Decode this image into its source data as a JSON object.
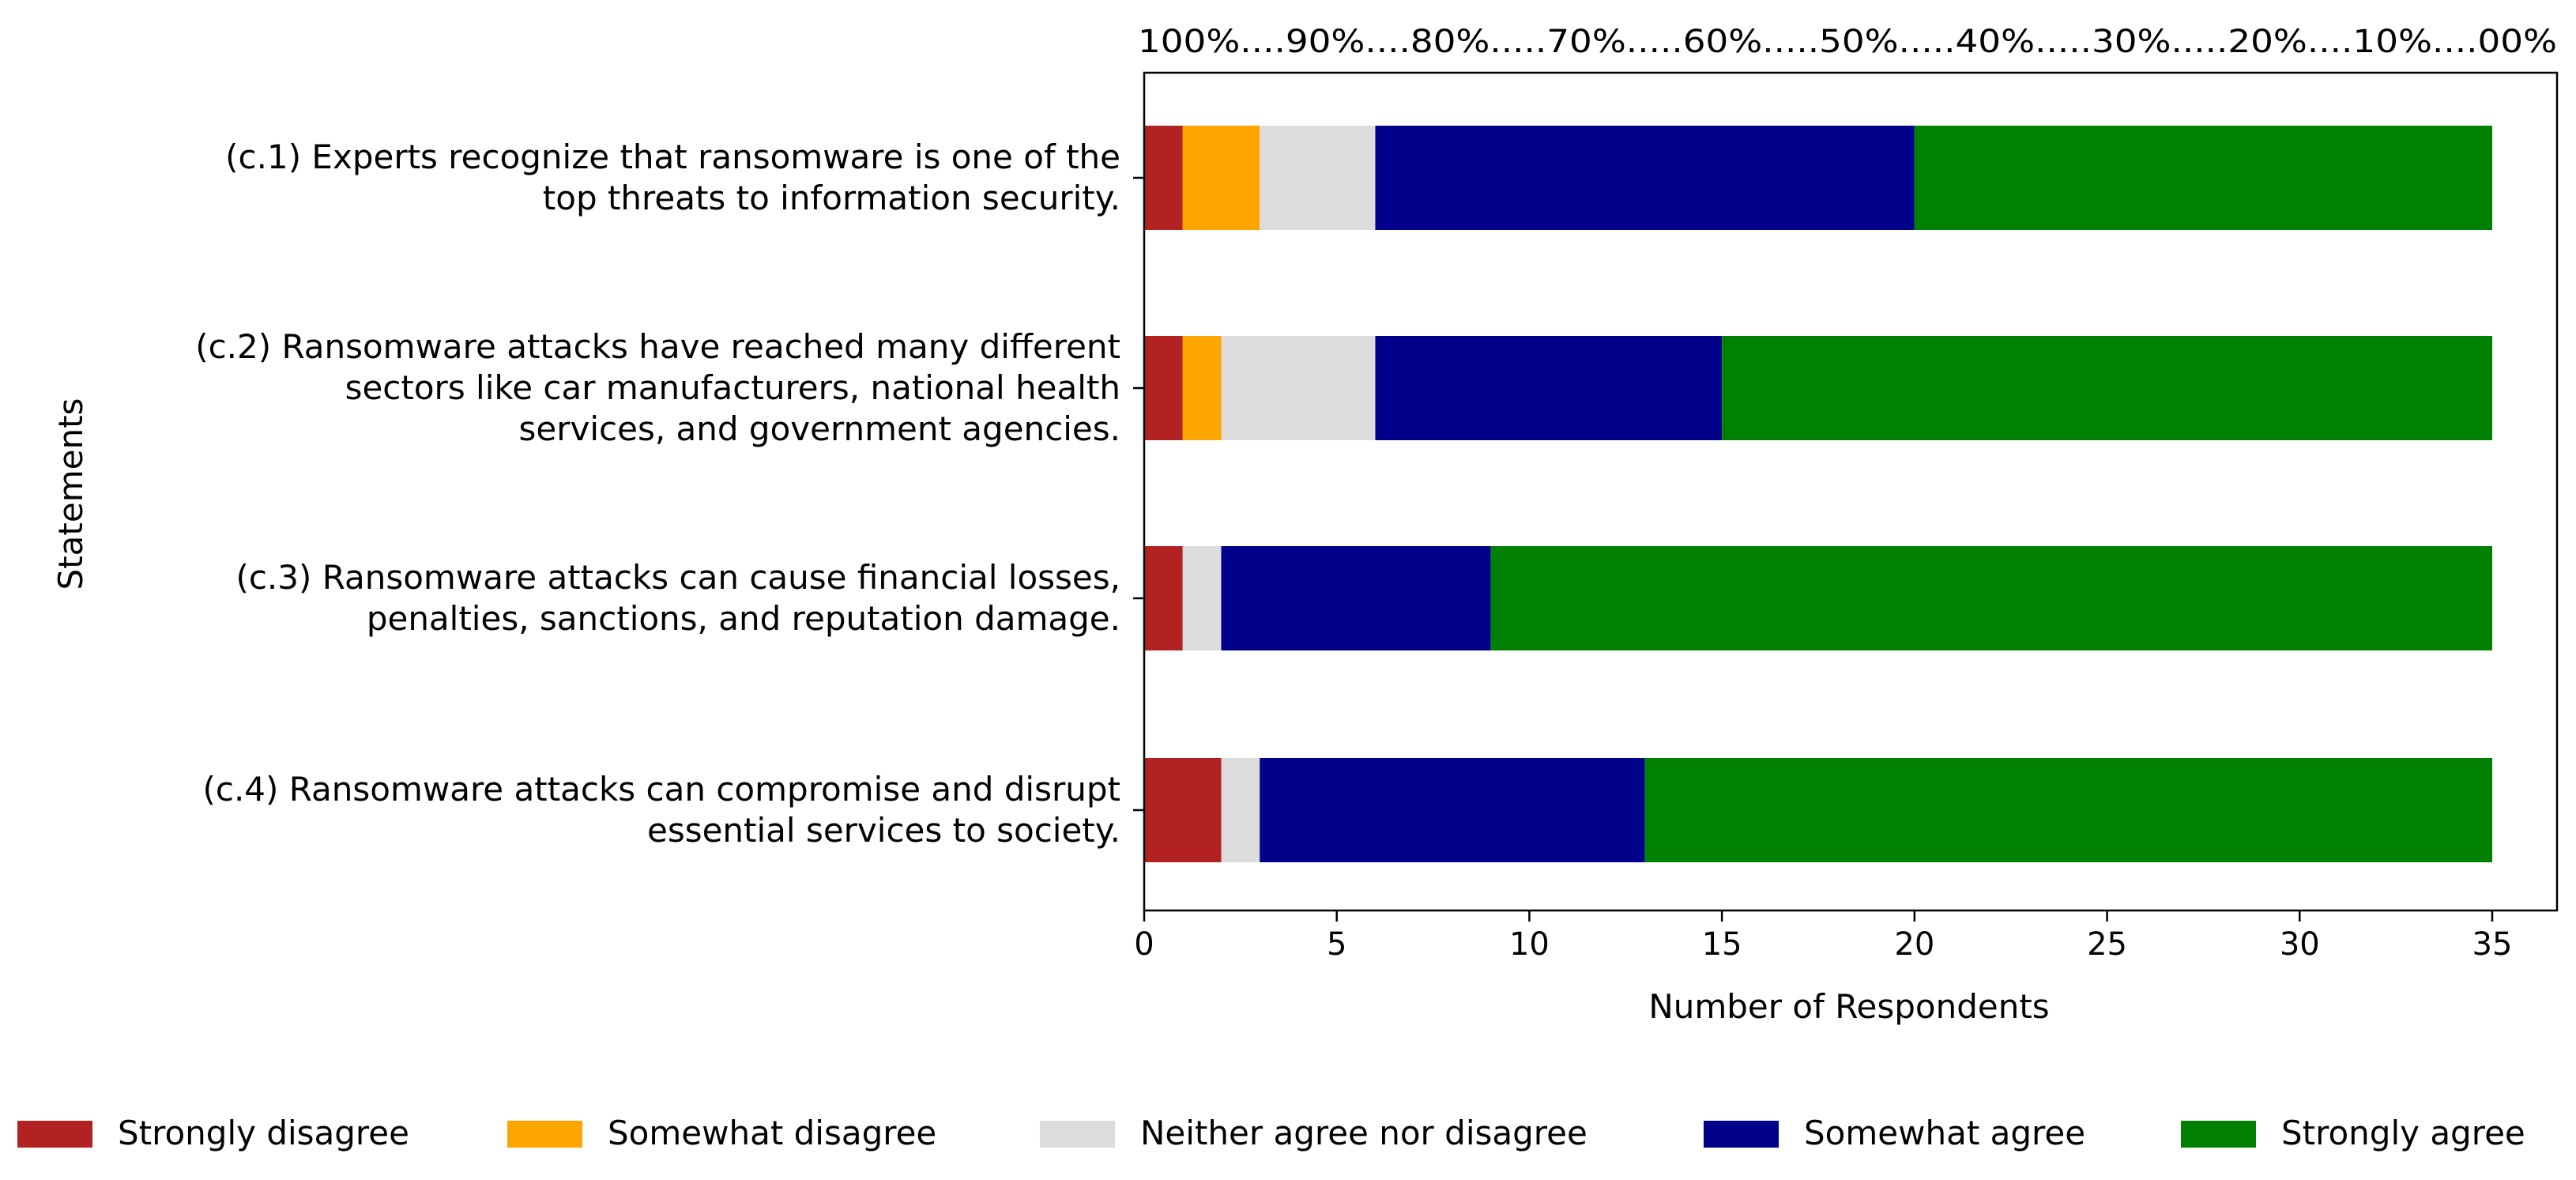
{
  "chart_data": {
    "type": "bar",
    "orientation": "horizontal",
    "stacked": true,
    "categories": [
      "(c.1) Experts recognize that ransomware is one of the\ntop threats to information security.",
      "(c.2) Ransomware attacks have reached many different\nsectors like car manufacturers, national health\nservices, and government agencies.",
      "(c.3) Ransomware attacks can cause financial losses,\npenalties, sanctions, and reputation damage.",
      "(c.4) Ransomware attacks can compromise and disrupt\nessential services to society."
    ],
    "series": [
      {
        "name": "Strongly disagree",
        "color": "#b22222",
        "values": [
          1,
          1,
          1,
          2
        ]
      },
      {
        "name": "Somewhat disagree",
        "color": "#ffa500",
        "values": [
          2,
          1,
          0,
          0
        ]
      },
      {
        "name": "Neither agree nor disagree",
        "color": "#dcdcdc",
        "values": [
          3,
          4,
          1,
          1
        ]
      },
      {
        "name": "Somewhat agree",
        "color": "#00008b",
        "values": [
          14,
          9,
          7,
          10
        ]
      },
      {
        "name": "Strongly agree",
        "color": "#008000",
        "values": [
          15,
          20,
          26,
          22
        ]
      }
    ],
    "xlabel": "Number of Respondents",
    "ylabel": "Statements",
    "xlim": [
      0,
      36.5
    ],
    "xticks": [
      0,
      5,
      10,
      15,
      20,
      25,
      30,
      35
    ],
    "top_axis_label": "100%....90%....80%.....70%.....60%.....50%.....40%.....30%.....20%....10%....00%",
    "legend_position": "bottom",
    "grid": false
  }
}
